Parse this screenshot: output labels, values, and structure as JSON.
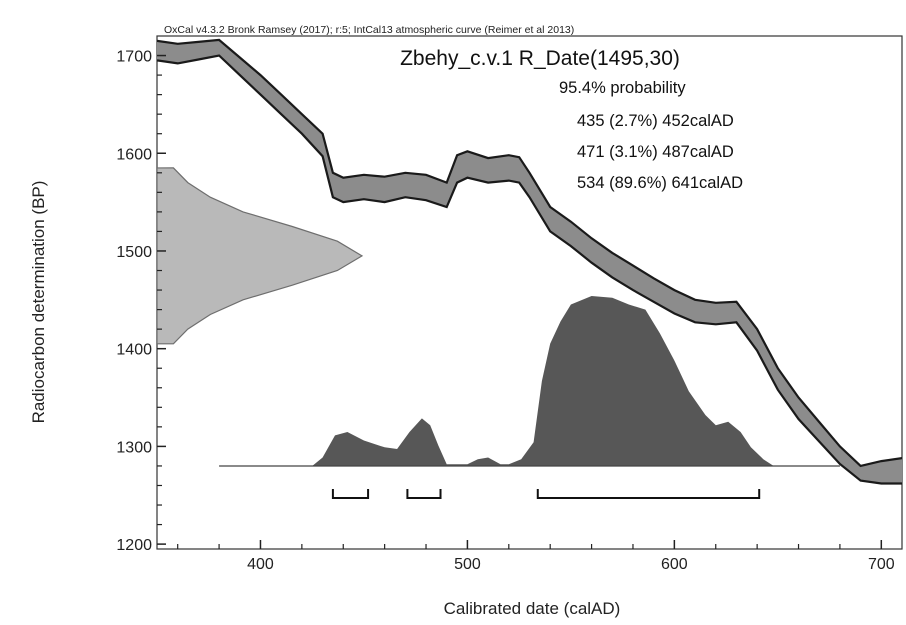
{
  "chart_data": {
    "type": "area",
    "header": "OxCal v4.3.2 Bronk Ramsey (2017); r:5; IntCal13 atmospheric curve (Reimer et al 2013)",
    "title": "Zbehy_c.v.1 R_Date(1495,30)",
    "xlabel": "Calibrated date (calAD)",
    "ylabel": "Radiocarbon determination (BP)",
    "xlim": [
      350,
      710
    ],
    "ylim": [
      1195,
      1720
    ],
    "x_ticks": [
      400,
      500,
      600,
      700
    ],
    "y_ticks": [
      1200,
      1300,
      1400,
      1500,
      1600,
      1700
    ],
    "probability_heading": "95.4% probability",
    "ranges": [
      {
        "from": 435,
        "to": 452,
        "label": "435 (2.7%) 452calAD"
      },
      {
        "from": 471,
        "to": 487,
        "label": "471 (3.1%) 487calAD"
      },
      {
        "from": 534,
        "to": 641,
        "label": "534 (89.6%) 641calAD"
      }
    ],
    "calibration_curve": {
      "x": [
        350,
        360,
        370,
        380,
        390,
        400,
        410,
        420,
        430,
        435,
        440,
        450,
        460,
        470,
        480,
        490,
        495,
        500,
        510,
        520,
        525,
        530,
        540,
        550,
        560,
        570,
        580,
        590,
        600,
        610,
        620,
        630,
        640,
        650,
        660,
        670,
        680,
        690,
        700,
        710
      ],
      "upper": [
        1715,
        1712,
        1714,
        1716,
        1698,
        1680,
        1660,
        1640,
        1620,
        1580,
        1575,
        1578,
        1576,
        1580,
        1578,
        1570,
        1598,
        1602,
        1595,
        1598,
        1596,
        1580,
        1545,
        1530,
        1513,
        1498,
        1485,
        1472,
        1460,
        1450,
        1447,
        1448,
        1420,
        1380,
        1350,
        1325,
        1300,
        1280,
        1285,
        1288
      ],
      "lower": [
        1695,
        1692,
        1696,
        1700,
        1680,
        1660,
        1640,
        1620,
        1597,
        1555,
        1550,
        1553,
        1550,
        1555,
        1552,
        1545,
        1570,
        1575,
        1570,
        1572,
        1570,
        1555,
        1520,
        1505,
        1488,
        1473,
        1460,
        1448,
        1436,
        1427,
        1425,
        1427,
        1398,
        1358,
        1328,
        1305,
        1282,
        1265,
        1262,
        1262
      ]
    },
    "radiocarbon_distribution": {
      "mean": 1495,
      "sigma": 30,
      "y": [
        1405,
        1420,
        1435,
        1450,
        1465,
        1480,
        1495,
        1510,
        1525,
        1540,
        1555,
        1570,
        1585
      ],
      "density": [
        0.08,
        0.15,
        0.26,
        0.42,
        0.66,
        0.88,
        1.0,
        0.88,
        0.66,
        0.42,
        0.26,
        0.15,
        0.08
      ]
    },
    "calibrated_distribution": {
      "x": [
        380,
        425,
        430,
        436,
        442,
        450,
        460,
        466,
        472,
        478,
        482,
        486,
        490,
        495,
        500,
        505,
        510,
        516,
        520,
        526,
        532,
        536,
        540,
        545,
        550,
        560,
        570,
        578,
        586,
        593,
        600,
        607,
        615,
        620,
        626,
        632,
        637,
        643,
        648,
        656,
        680
      ],
      "density": [
        0,
        0,
        0.05,
        0.18,
        0.2,
        0.15,
        0.11,
        0.1,
        0.2,
        0.28,
        0.24,
        0.12,
        0.01,
        0.01,
        0.01,
        0.04,
        0.05,
        0.01,
        0.01,
        0.04,
        0.14,
        0.5,
        0.72,
        0.85,
        0.95,
        1.0,
        0.99,
        0.95,
        0.92,
        0.78,
        0.62,
        0.44,
        0.3,
        0.24,
        0.26,
        0.2,
        0.11,
        0.04,
        0.0,
        0,
        0
      ]
    }
  }
}
